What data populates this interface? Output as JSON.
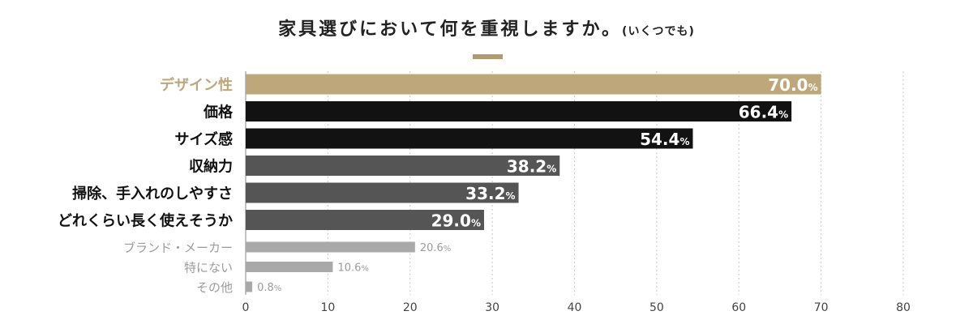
{
  "title": {
    "main": "家具選びにおいて何を重視しますか。",
    "note": "(いくつでも)"
  },
  "colors": {
    "accent": "#bda77b",
    "dark": "#121212",
    "mid": "#555555",
    "light": "#a9a9a9",
    "title_rule": "#b09a6e"
  },
  "chart_data": {
    "type": "bar",
    "orientation": "horizontal",
    "categories": [
      "デザイン性",
      "価格",
      "サイズ感",
      "収納力",
      "掃除、手入れのしやすさ",
      "どれくらい長く使えそうか",
      "ブランド・メーカー",
      "特にない",
      "その他"
    ],
    "values": [
      70.0,
      66.4,
      54.4,
      38.2,
      33.2,
      29.0,
      20.6,
      10.6,
      0.8
    ],
    "value_labels": [
      "70.0",
      "66.4",
      "54.4",
      "38.2",
      "33.2",
      "29.0",
      "20.6",
      "10.6",
      "0.8"
    ],
    "unit": "%",
    "bar_colors": [
      "#bda77b",
      "#121212",
      "#121212",
      "#555555",
      "#555555",
      "#555555",
      "#a9a9a9",
      "#a9a9a9",
      "#a9a9a9"
    ],
    "label_colors": [
      "#bda77b",
      "#111111",
      "#111111",
      "#111111",
      "#111111",
      "#111111",
      "#9b9b9b",
      "#9b9b9b",
      "#9b9b9b"
    ],
    "xlim": [
      0,
      80
    ],
    "xticks": [
      0,
      10,
      20,
      30,
      40,
      50,
      60,
      70,
      80
    ],
    "grid": "vertical-dotted",
    "title": "家具選びにおいて何を重視しますか。(いくつでも)",
    "xlabel": "",
    "ylabel": ""
  }
}
